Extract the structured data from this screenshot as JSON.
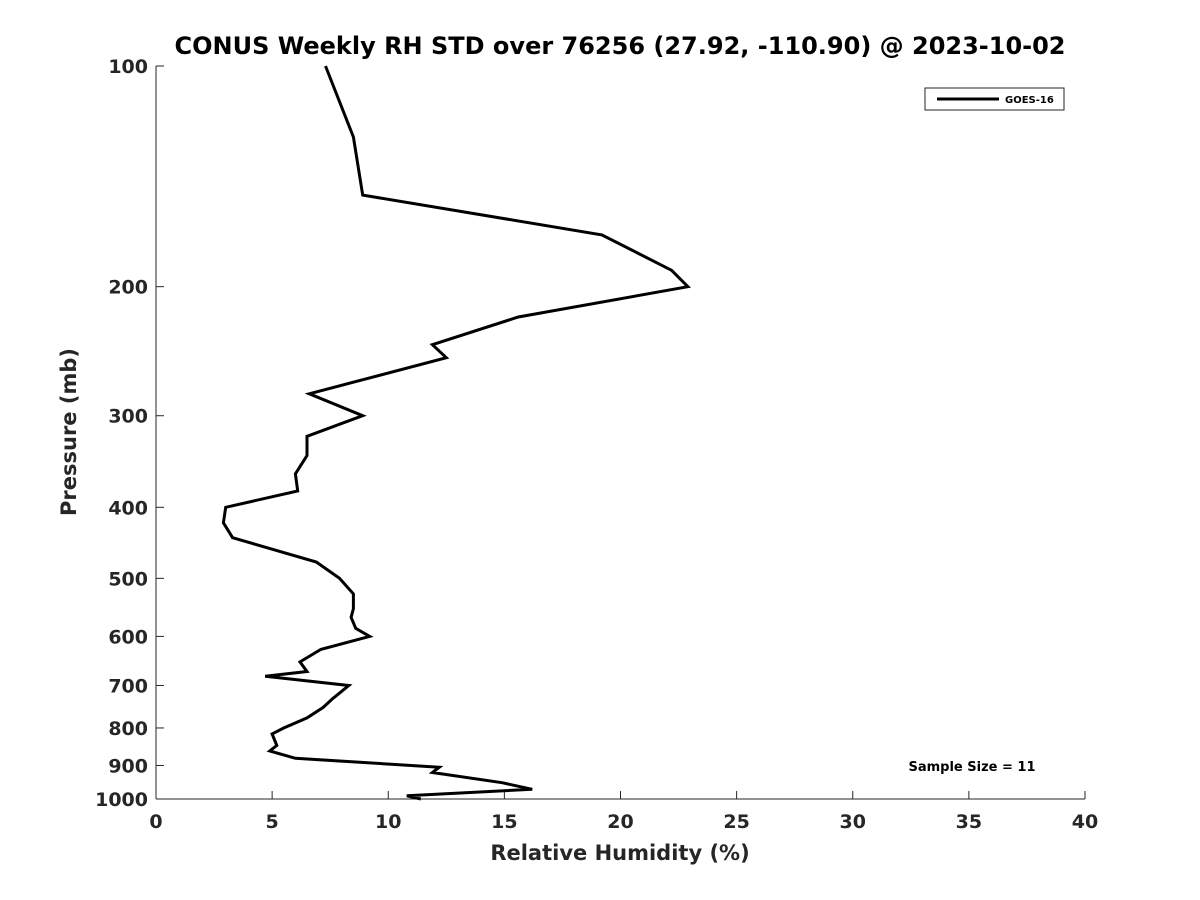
{
  "chart_data": {
    "type": "line",
    "title": "CONUS Weekly RH STD over 76256 (27.92, -110.90) @ 2023-10-02",
    "xlabel": "Relative Humidity (%)",
    "ylabel": "Pressure (mb)",
    "xlim": [
      0,
      40
    ],
    "ylim": [
      100,
      1000
    ],
    "y_scale": "log",
    "y_reversed": true,
    "x_ticks": [
      0,
      5,
      10,
      15,
      20,
      25,
      30,
      35,
      40
    ],
    "y_ticks": [
      100,
      200,
      300,
      400,
      500,
      600,
      700,
      800,
      900,
      1000
    ],
    "grid": false,
    "legend_position": "top-right",
    "annotation": "Sample Size = 11",
    "series": [
      {
        "name": "GOES-16",
        "color": "#000000",
        "points": [
          [
            7.3,
            100
          ],
          [
            8.5,
            125
          ],
          [
            8.9,
            150
          ],
          [
            19.2,
            170
          ],
          [
            22.2,
            190
          ],
          [
            22.9,
            200
          ],
          [
            15.6,
            220
          ],
          [
            11.9,
            240
          ],
          [
            12.5,
            250
          ],
          [
            6.6,
            280
          ],
          [
            8.9,
            300
          ],
          [
            6.5,
            320
          ],
          [
            6.5,
            340
          ],
          [
            6.0,
            360
          ],
          [
            6.1,
            380
          ],
          [
            3.0,
            400
          ],
          [
            2.9,
            420
          ],
          [
            3.3,
            440
          ],
          [
            6.9,
            475
          ],
          [
            7.9,
            500
          ],
          [
            8.5,
            525
          ],
          [
            8.5,
            550
          ],
          [
            8.4,
            565
          ],
          [
            8.6,
            585
          ],
          [
            9.2,
            600
          ],
          [
            7.1,
            625
          ],
          [
            6.2,
            650
          ],
          [
            6.5,
            670
          ],
          [
            4.7,
            680
          ],
          [
            8.3,
            700
          ],
          [
            7.6,
            730
          ],
          [
            7.2,
            750
          ],
          [
            6.5,
            775
          ],
          [
            5.5,
            800
          ],
          [
            5.0,
            815
          ],
          [
            5.2,
            845
          ],
          [
            4.9,
            860
          ],
          [
            6.0,
            880
          ],
          [
            12.2,
            905
          ],
          [
            11.9,
            920
          ],
          [
            14.9,
            950
          ],
          [
            16.2,
            970
          ],
          [
            10.8,
            990
          ],
          [
            11.4,
            1000
          ]
        ]
      }
    ]
  }
}
